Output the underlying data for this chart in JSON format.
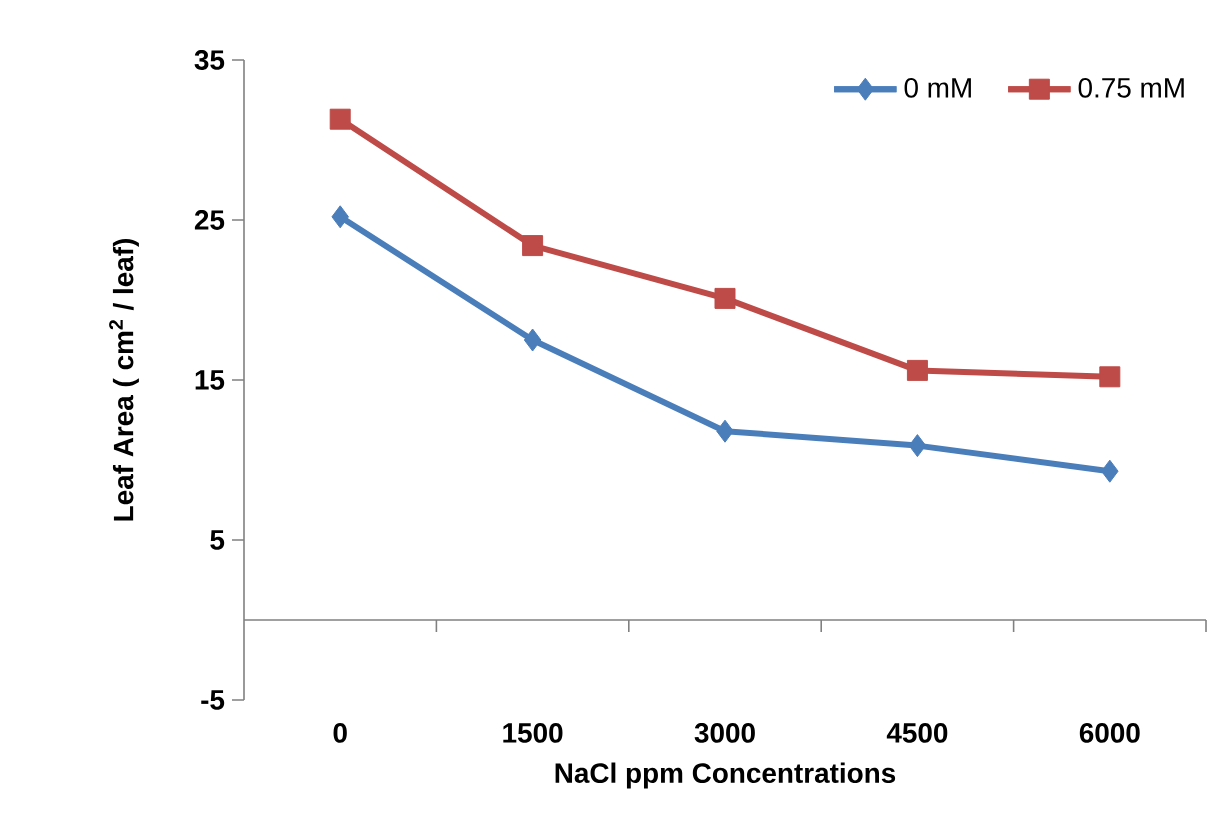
{
  "chart_data": {
    "type": "line",
    "xlabel": "NaCl ppm Concentrations",
    "ylabel": "Leaf Area ( cm$^{2}$ / leaf)",
    "categories": [
      "0",
      "1500",
      "3000",
      "4500",
      "6000"
    ],
    "series": [
      {
        "name": "0 mM",
        "color": "#4a7ebb",
        "marker": "diamond",
        "values": [
          25.2,
          17.5,
          11.8,
          10.9,
          9.3
        ]
      },
      {
        "name": "0.75 mM",
        "color": "#be4b48",
        "marker": "square",
        "values": [
          31.3,
          23.4,
          20.1,
          15.6,
          15.2
        ]
      }
    ],
    "ylim": [
      -5,
      35
    ],
    "yticks": [
      -5,
      5,
      15,
      25,
      35
    ],
    "legend": "top right",
    "grid": false
  }
}
